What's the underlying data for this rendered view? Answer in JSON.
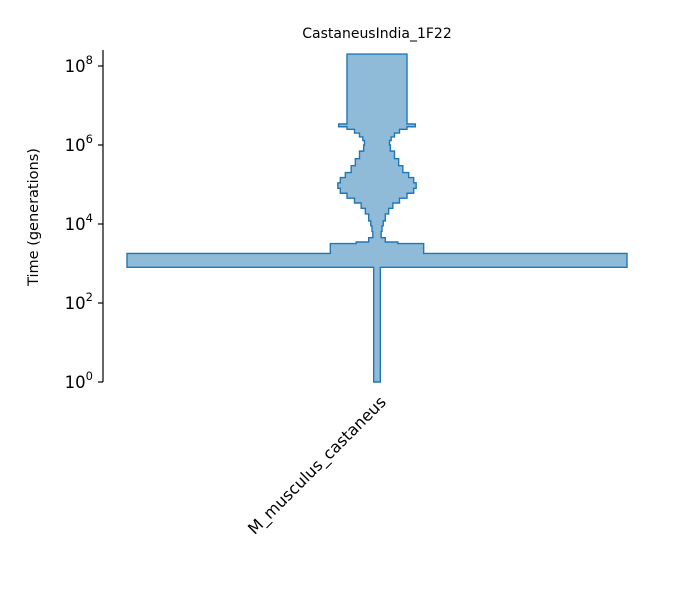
{
  "chart_data": {
    "type": "area",
    "title": "CastaneusIndia_1F22",
    "ylabel": "Time (generations)",
    "yscale": "log",
    "ylim": [
      1,
      200000000
    ],
    "yticks": [
      {
        "value": 1,
        "base": "10",
        "exp": "0"
      },
      {
        "value": 100,
        "base": "10",
        "exp": "2"
      },
      {
        "value": 10000,
        "base": "10",
        "exp": "4"
      },
      {
        "value": 1000000,
        "base": "10",
        "exp": "6"
      },
      {
        "value": 100000000,
        "base": "10",
        "exp": "8"
      }
    ],
    "categories": [
      "M_musculus_castaneus"
    ],
    "colors": {
      "fill": "#8fbbd9",
      "stroke": "#1f77b4"
    },
    "deme": {
      "name": "M_musculus_castaneus",
      "size_history": [
        {
          "time": 200000000,
          "size": 36000
        },
        {
          "time": 3600000,
          "size": 36000
        },
        {
          "time": 3400000,
          "size": 46000
        },
        {
          "time": 2900000,
          "size": 36000
        },
        {
          "time": 2500000,
          "size": 27000
        },
        {
          "time": 2000000,
          "size": 21000
        },
        {
          "time": 1600000,
          "size": 17000
        },
        {
          "time": 1300000,
          "size": 15000
        },
        {
          "time": 1000000,
          "size": 16000
        },
        {
          "time": 700000,
          "size": 21000
        },
        {
          "time": 450000,
          "size": 26000
        },
        {
          "time": 300000,
          "size": 31000
        },
        {
          "time": 200000,
          "size": 38000
        },
        {
          "time": 150000,
          "size": 44000
        },
        {
          "time": 110000,
          "size": 47000
        },
        {
          "time": 80000,
          "size": 44000
        },
        {
          "time": 60000,
          "size": 36000
        },
        {
          "time": 45000,
          "size": 27000
        },
        {
          "time": 34000,
          "size": 19000
        },
        {
          "time": 25000,
          "size": 14000
        },
        {
          "time": 18000,
          "size": 10000
        },
        {
          "time": 12000,
          "size": 7500
        },
        {
          "time": 9000,
          "size": 6000
        },
        {
          "time": 6500,
          "size": 5000
        },
        {
          "time": 4500,
          "size": 10000
        },
        {
          "time": 3500,
          "size": 25000
        },
        {
          "time": 3200,
          "size": 56000
        },
        {
          "time": 2500,
          "size": 56000
        },
        {
          "time": 1800,
          "size": 300000
        },
        {
          "time": 800,
          "size": 300000
        },
        {
          "time": 800,
          "size": 4000
        },
        {
          "time": 1,
          "size": 4000
        }
      ]
    }
  }
}
